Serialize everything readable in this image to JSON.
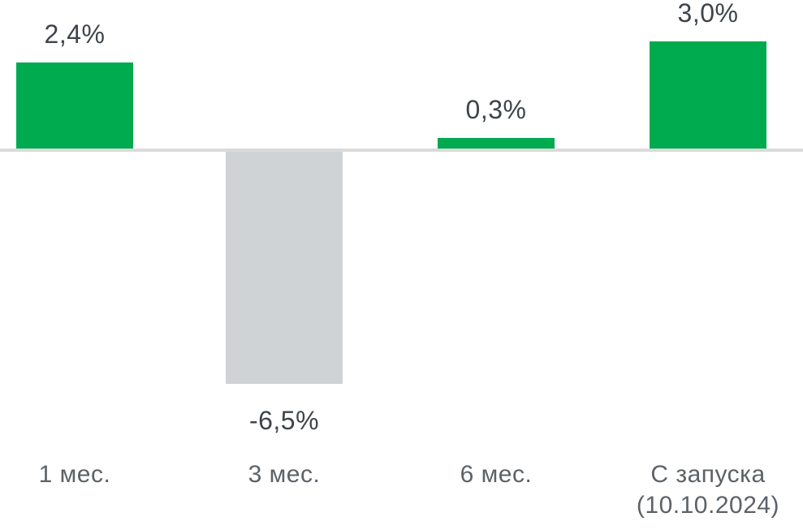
{
  "chart_data": {
    "type": "bar",
    "categories": [
      "1 мес.",
      "3 мес.",
      "6 мес.",
      "С запуска (10.10.2024)"
    ],
    "values": [
      2.4,
      -6.5,
      0.3,
      3.0
    ],
    "value_labels": [
      "2,4%",
      "-6,5%",
      "0,3%",
      "3,0%"
    ],
    "unit": "%",
    "title": "",
    "xlabel": "",
    "ylabel": "",
    "ylim": [
      -7.5,
      3.5
    ],
    "grid": false,
    "legend": false,
    "baseline_at_zero": true,
    "positive_color": "#00ab50",
    "negative_color": "#cfd3d6",
    "axis_line_color": "#dadada",
    "value_text_color": "#3f444a",
    "category_text_color": "#5d6267",
    "bar_colors": [
      "#00ab50",
      "#cfd3d6",
      "#00ab50",
      "#00ab50"
    ]
  },
  "display": {
    "category_lines": [
      [
        "1 мес."
      ],
      [
        "3 мес."
      ],
      [
        "6 мес."
      ],
      [
        "С запуска",
        "(10.10.2024)"
      ]
    ]
  }
}
